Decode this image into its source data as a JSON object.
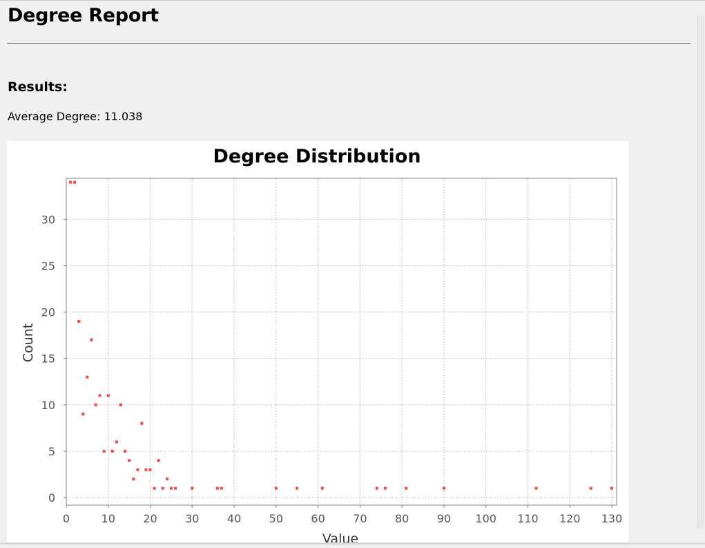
{
  "report": {
    "title": "Degree Report",
    "results_heading": "Results:",
    "average_degree_text": "Average Degree: 11.038"
  },
  "chart_data": {
    "type": "scatter",
    "title": "Degree Distribution",
    "xlabel": "Value",
    "ylabel": "Count",
    "xlim": [
      0,
      130
    ],
    "ylim": [
      0,
      34
    ],
    "xticks": [
      0,
      10,
      20,
      30,
      40,
      50,
      60,
      70,
      80,
      90,
      100,
      110,
      120,
      130
    ],
    "yticks": [
      0,
      5,
      10,
      15,
      20,
      25,
      30
    ],
    "grid": true,
    "marker_color": "#ff4444",
    "points": [
      {
        "x": 1,
        "y": 34
      },
      {
        "x": 2,
        "y": 34
      },
      {
        "x": 3,
        "y": 19
      },
      {
        "x": 4,
        "y": 9
      },
      {
        "x": 5,
        "y": 13
      },
      {
        "x": 6,
        "y": 17
      },
      {
        "x": 7,
        "y": 10
      },
      {
        "x": 8,
        "y": 11
      },
      {
        "x": 9,
        "y": 5
      },
      {
        "x": 10,
        "y": 11
      },
      {
        "x": 11,
        "y": 5
      },
      {
        "x": 12,
        "y": 6
      },
      {
        "x": 13,
        "y": 10
      },
      {
        "x": 14,
        "y": 5
      },
      {
        "x": 15,
        "y": 4
      },
      {
        "x": 16,
        "y": 2
      },
      {
        "x": 17,
        "y": 3
      },
      {
        "x": 18,
        "y": 8
      },
      {
        "x": 19,
        "y": 3
      },
      {
        "x": 20,
        "y": 3
      },
      {
        "x": 21,
        "y": 1
      },
      {
        "x": 22,
        "y": 4
      },
      {
        "x": 23,
        "y": 1
      },
      {
        "x": 24,
        "y": 2
      },
      {
        "x": 25,
        "y": 1
      },
      {
        "x": 26,
        "y": 1
      },
      {
        "x": 30,
        "y": 1
      },
      {
        "x": 36,
        "y": 1
      },
      {
        "x": 37,
        "y": 1
      },
      {
        "x": 50,
        "y": 1
      },
      {
        "x": 55,
        "y": 1
      },
      {
        "x": 61,
        "y": 1
      },
      {
        "x": 74,
        "y": 1
      },
      {
        "x": 76,
        "y": 1
      },
      {
        "x": 81,
        "y": 1
      },
      {
        "x": 90,
        "y": 1
      },
      {
        "x": 112,
        "y": 1
      },
      {
        "x": 125,
        "y": 1
      },
      {
        "x": 130,
        "y": 1
      }
    ]
  }
}
